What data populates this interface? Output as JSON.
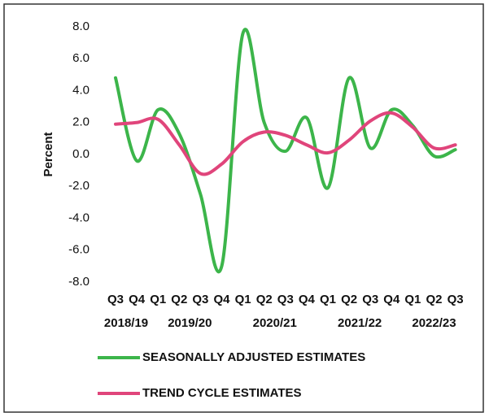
{
  "chart_data": {
    "type": "line",
    "y_label": "Percent",
    "category_groups": [
      {
        "label": "2018/19",
        "categories": [
          "Q3",
          "Q4"
        ]
      },
      {
        "label": "2019/20",
        "categories": [
          "Q1",
          "Q2",
          "Q3",
          "Q4"
        ]
      },
      {
        "label": "2020/21",
        "categories": [
          "Q1",
          "Q2",
          "Q3",
          "Q4"
        ]
      },
      {
        "label": "2021/22",
        "categories": [
          "Q1",
          "Q2",
          "Q3",
          "Q4"
        ]
      },
      {
        "label": "2022/23",
        "categories": [
          "Q1",
          "Q2",
          "Q3"
        ]
      }
    ],
    "series": [
      {
        "name": "SEASONALLY ADJUSTED ESTIMATES",
        "color": "#3cb54a",
        "values": [
          4.8,
          -0.4,
          2.8,
          1.3,
          -2.5,
          -7.0,
          7.6,
          2.0,
          0.2,
          2.3,
          -2.1,
          4.8,
          0.4,
          2.8,
          1.8,
          -0.1,
          0.3
        ]
      },
      {
        "name": "TREND CYCLE ESTIMATES",
        "color": "#e0457b",
        "values": [
          1.9,
          2.0,
          2.2,
          0.6,
          -1.2,
          -0.6,
          0.8,
          1.4,
          1.2,
          0.6,
          0.1,
          0.9,
          2.1,
          2.6,
          1.7,
          0.4,
          0.6
        ]
      }
    ],
    "ylim": [
      -8,
      8
    ],
    "yticks": [
      {
        "value": 8,
        "label": "8.0"
      },
      {
        "value": 6,
        "label": "6.0"
      },
      {
        "value": 4,
        "label": "4.0"
      },
      {
        "value": 2,
        "label": "2.0"
      },
      {
        "value": 0,
        "label": "0.0"
      },
      {
        "value": -2,
        "label": "-2.0"
      },
      {
        "value": -4,
        "label": "-4.0"
      },
      {
        "value": -6,
        "label": "-6.0"
      },
      {
        "value": -8,
        "label": "-8.0"
      }
    ],
    "grid": false
  }
}
